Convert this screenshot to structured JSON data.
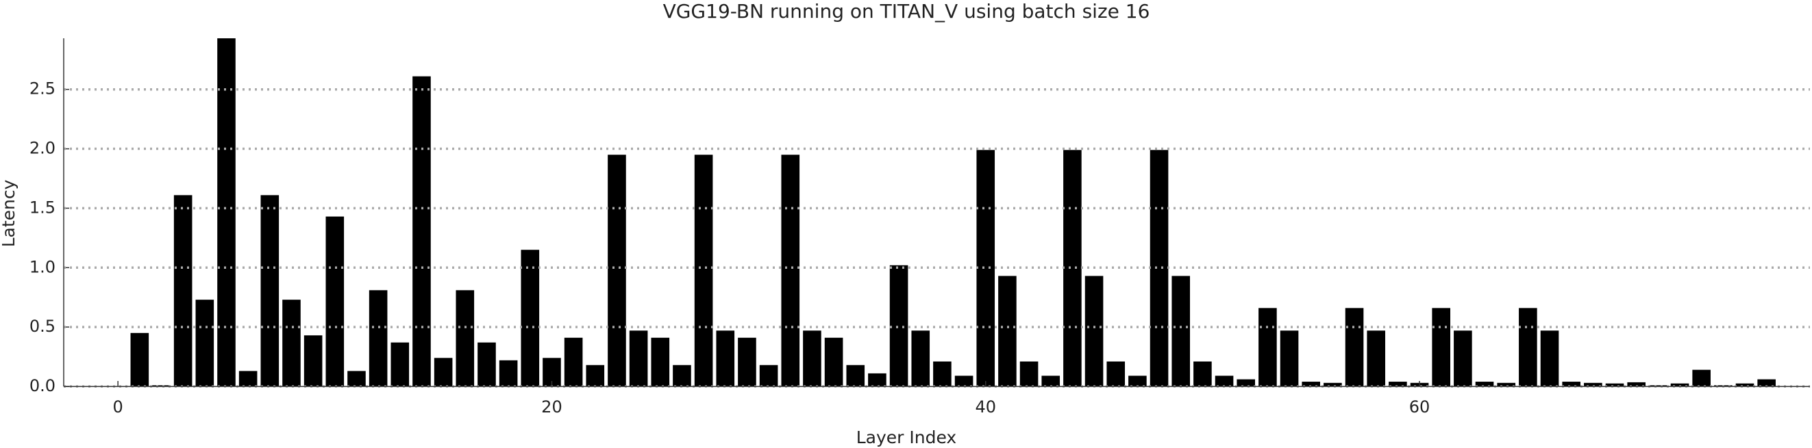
{
  "chart_data": {
    "type": "bar",
    "title": "VGG19-BN running on TITAN_V using batch size 16",
    "xlabel": "Layer Index",
    "ylabel": "Latency",
    "x": [
      0,
      1,
      2,
      3,
      4,
      5,
      6,
      7,
      8,
      9,
      10,
      11,
      12,
      13,
      14,
      15,
      16,
      17,
      18,
      19,
      20,
      21,
      22,
      23,
      24,
      25,
      26,
      27,
      28,
      29,
      30,
      31,
      32,
      33,
      34,
      35,
      36,
      37,
      38,
      39,
      40,
      41,
      42,
      43,
      44,
      45,
      46,
      47,
      48,
      49,
      50,
      51,
      52,
      53,
      54,
      55,
      56,
      57,
      58,
      59,
      60,
      61,
      62,
      63,
      64,
      65,
      66,
      67,
      68,
      69,
      70,
      71,
      72,
      73,
      74,
      75,
      76
    ],
    "values": [
      0,
      0.45,
      0.01,
      1.61,
      0.73,
      2.93,
      0.13,
      1.61,
      0.73,
      0.43,
      1.43,
      0.13,
      0.81,
      0.37,
      2.61,
      0.24,
      0.81,
      0.37,
      0.22,
      1.15,
      0.24,
      0.41,
      0.18,
      1.95,
      0.47,
      0.41,
      0.18,
      1.95,
      0.47,
      0.41,
      0.18,
      1.95,
      0.47,
      0.41,
      0.18,
      0.11,
      1.02,
      0.47,
      0.21,
      0.09,
      1.99,
      0.93,
      0.21,
      0.09,
      1.99,
      0.93,
      0.21,
      0.09,
      1.99,
      0.93,
      0.21,
      0.09,
      0.06,
      0.66,
      0.47,
      0.04,
      0.03,
      0.66,
      0.47,
      0.04,
      0.03,
      0.66,
      0.47,
      0.04,
      0.03,
      0.66,
      0.47,
      0.04,
      0.03,
      0.025,
      0.035,
      0.01,
      0.025,
      0.14,
      0.01,
      0.025,
      0.06
    ],
    "color": "#000000",
    "xlim": [
      -2.5,
      78
    ],
    "xticks": [
      0,
      20,
      40,
      60
    ],
    "ylim": [
      0,
      2.93
    ],
    "yticks": [
      {
        "value": 0,
        "label": "0.0"
      },
      0.5,
      {
        "value": 1,
        "label": "1.0"
      },
      1.5,
      {
        "value": 2,
        "label": "2.0"
      },
      2.5
    ],
    "grid": true
  }
}
